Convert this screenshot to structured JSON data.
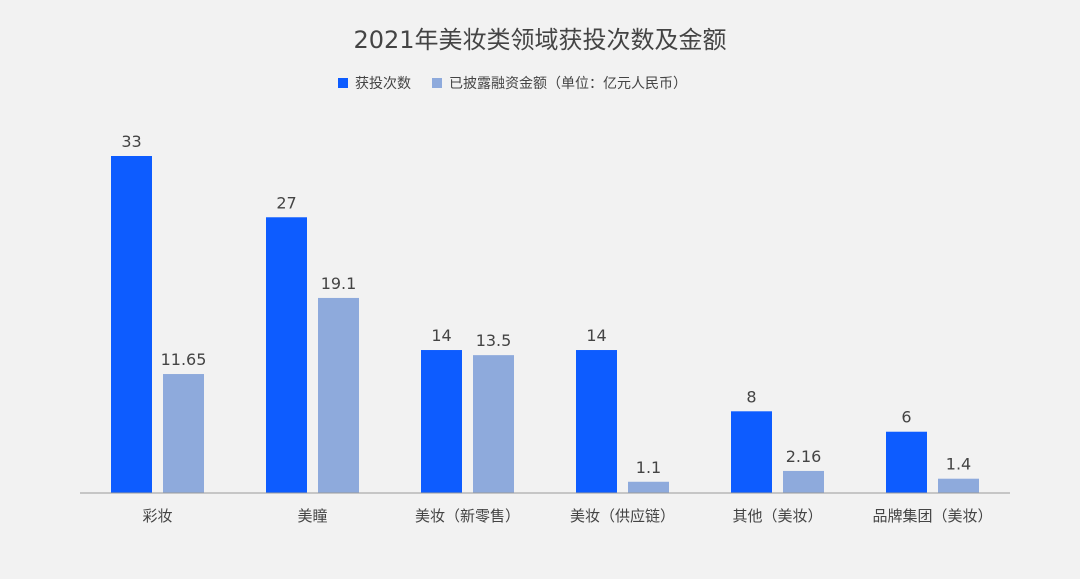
{
  "chart_data": {
    "type": "bar",
    "title": "2021年美妆类领域获投次数及金额",
    "categories": [
      "彩妆",
      "美瞳",
      "美妆（新零售）",
      "美妆（供应链）",
      "其他（美妆）",
      "品牌集团（美妆）"
    ],
    "series": [
      {
        "name": "获投次数",
        "values": [
          33,
          27,
          14,
          14,
          8,
          6
        ],
        "labels": [
          "33",
          "27",
          "14",
          "14",
          "8",
          "6"
        ],
        "color": "#0d5cff"
      },
      {
        "name": "已披露融资金额（单位：亿元人民币）",
        "values": [
          11.65,
          19.1,
          13.5,
          1.1,
          2.16,
          1.4
        ],
        "labels": [
          "11.65",
          "19.1",
          "13.5",
          "1.1",
          "2.16",
          "1.4"
        ],
        "color": "#8eaadc"
      }
    ],
    "ylim": [
      0,
      33
    ],
    "grid": false,
    "legend_position": "top-center",
    "axis_color": "#999999",
    "text_color": "#444444"
  }
}
